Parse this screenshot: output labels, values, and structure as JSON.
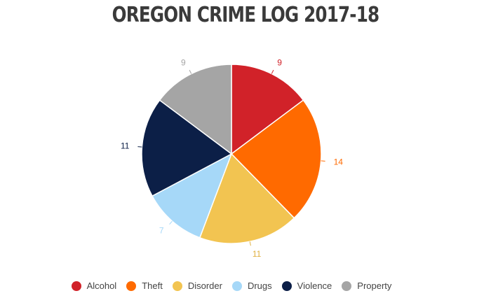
{
  "title": "OREGON CRIME LOG 2017-18",
  "chart_data": {
    "type": "pie",
    "title": "OREGON CRIME LOG 2017-18",
    "categories": [
      "Alcohol",
      "Theft",
      "Disorder",
      "Drugs",
      "Violence",
      "Property"
    ],
    "values": [
      9,
      14,
      11,
      7,
      11,
      9
    ],
    "colors": [
      "#d12229",
      "#ff6a00",
      "#f2c451",
      "#a6d8f8",
      "#0c1f47",
      "#a5a5a5"
    ],
    "label_colors": [
      "#d12229",
      "#ff6a00",
      "#e0b040",
      "#a6d8f8",
      "#0c1f47",
      "#a5a5a5"
    ],
    "legend_position": "bottom",
    "start_angle": "12 o'clock, clockwise"
  },
  "legend": [
    {
      "label": "Alcohol",
      "color": "#d12229"
    },
    {
      "label": "Theft",
      "color": "#ff6a00"
    },
    {
      "label": "Disorder",
      "color": "#f2c451"
    },
    {
      "label": "Drugs",
      "color": "#a6d8f8"
    },
    {
      "label": "Violence",
      "color": "#0c1f47"
    },
    {
      "label": "Property",
      "color": "#a5a5a5"
    }
  ]
}
